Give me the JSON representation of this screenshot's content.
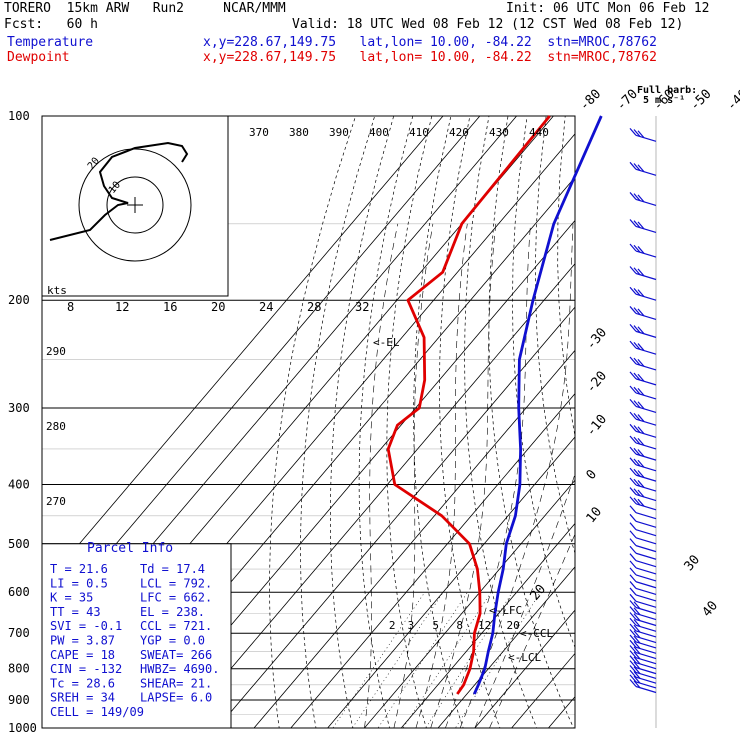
{
  "header": {
    "model": "TORERO  15km ARW   Run2     NCAR/MMM",
    "init": "Init: 06 UTC Mon 06 Feb 12",
    "fcst": "Fcst:   60 h",
    "valid": "Valid: 18 UTC Wed 08 Feb 12 (12 CST Wed 08 Feb 12)",
    "temp_label": "Temperature",
    "dew_label": "Dewpoint",
    "loc_info": "x,y=228.67,149.75   lat,lon= 10.00, -84.22  stn=MROC,78762",
    "barb_title": "Full barb:",
    "barb_units": "5 m s⁻¹"
  },
  "chart_data": {
    "type": "line",
    "xlabel": "",
    "ylabel": "",
    "pressure_ticks": [
      "100",
      "200",
      "300",
      "400",
      "500",
      "600",
      "700",
      "800",
      "900",
      "1000"
    ],
    "pressure_levels": [
      100,
      200,
      300,
      400,
      500,
      600,
      700,
      800,
      900,
      1000
    ],
    "temp_ticks_top": [
      "-80",
      "-70",
      "-60",
      "-50",
      "-40"
    ],
    "temp_ticks_right": [
      "-30",
      "-20",
      "-10",
      "0",
      "10",
      "20",
      "30",
      "40"
    ],
    "theta_e_labels": [
      "370",
      "380",
      "390",
      "400",
      "410",
      "420",
      "430",
      "440"
    ],
    "theta_labels": [
      "290",
      "280",
      "270"
    ],
    "mixing_ratio_labels": [
      "2",
      "3",
      "5",
      "8",
      "12",
      "20"
    ],
    "hodo_speed_labels": [
      "8",
      "12",
      "16",
      "20",
      "24",
      "28",
      "32"
    ],
    "hodo_units": "kts",
    "hodo_ring_labels": [
      "10",
      "20"
    ],
    "level_labels": {
      "el": "<-EL",
      "lfo": "<-LFC",
      "ccl": "<-CCL",
      "lcl": "<-LCL"
    },
    "series": [
      {
        "name": "Temperature",
        "color": "#1010d0",
        "points": [
          [
            100,
            -77
          ],
          [
            150,
            -65
          ],
          [
            200,
            -53
          ],
          [
            250,
            -43
          ],
          [
            300,
            -32
          ],
          [
            350,
            -22
          ],
          [
            400,
            -14
          ],
          [
            450,
            -8
          ],
          [
            500,
            -4
          ],
          [
            550,
            1
          ],
          [
            600,
            5
          ],
          [
            650,
            9
          ],
          [
            700,
            13
          ],
          [
            750,
            16
          ],
          [
            800,
            19
          ],
          [
            850,
            21
          ],
          [
            880,
            22
          ]
        ]
      },
      {
        "name": "Dewpoint",
        "color": "#e00000",
        "points": [
          [
            100,
            -91
          ],
          [
            150,
            -90
          ],
          [
            180,
            -84
          ],
          [
            200,
            -87
          ],
          [
            230,
            -74
          ],
          [
            270,
            -64
          ],
          [
            300,
            -59
          ],
          [
            320,
            -61
          ],
          [
            350,
            -58
          ],
          [
            400,
            -48
          ],
          [
            450,
            -28
          ],
          [
            500,
            -14
          ],
          [
            550,
            -6
          ],
          [
            600,
            0
          ],
          [
            650,
            5
          ],
          [
            700,
            8
          ],
          [
            750,
            12
          ],
          [
            800,
            15
          ],
          [
            850,
            17
          ],
          [
            880,
            17.4
          ]
        ]
      }
    ],
    "parcel_info": {
      "title": "Parcel Info",
      "rows": [
        [
          "T    =  21.6",
          "Td  =  17.4"
        ],
        [
          "LI   =   0.5",
          "LCL =  792."
        ],
        [
          "K    =    35",
          "LFC =  662."
        ],
        [
          "TT   =    43",
          "EL  =  238."
        ],
        [
          "SVI  =  -0.1",
          "CCL =  721."
        ],
        [
          "PW   =  3.87",
          "YGP =   0.0"
        ],
        [
          "CAPE =    18",
          "SWEAT=  266"
        ],
        [
          "CIN  =  -132",
          "HWBZ= 4690."
        ],
        [
          "Tc   =  28.6",
          "SHEAR=  21."
        ],
        [
          "SREH =    34",
          "LAPSE=  6.0"
        ],
        [
          "CELL = 149/09",
          ""
        ]
      ]
    },
    "grid": true
  },
  "colors": {
    "temp": "#1010d0",
    "dew": "#e00000",
    "wind": "#1010d0",
    "grid": "#000000"
  }
}
